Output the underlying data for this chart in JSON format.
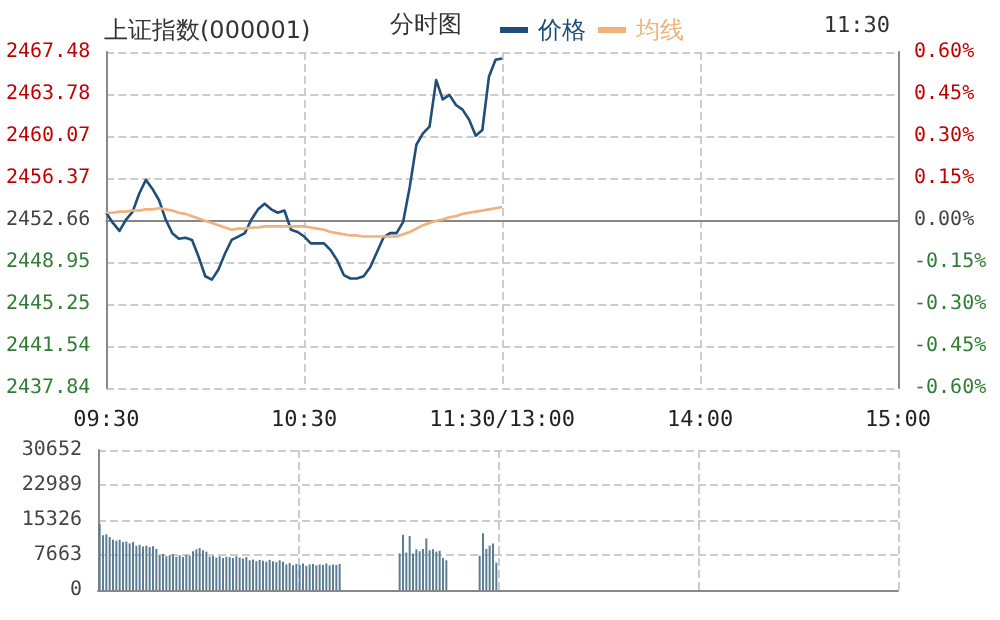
{
  "chart_data": [
    {
      "type": "line",
      "title": "上证指数(000001)",
      "subtitle": "分时图",
      "annotations": [
        "11:30"
      ],
      "legend": "top",
      "grid": true,
      "marker": "none",
      "line_style": "solid",
      "categories": [
        "09:30",
        null,
        null,
        null,
        null,
        null,
        null,
        null,
        null,
        null,
        null,
        null,
        null,
        null,
        null,
        null,
        null,
        null,
        null,
        null,
        null,
        null,
        null,
        null,
        null,
        null,
        null,
        null,
        null,
        null,
        "10:30",
        null,
        null,
        null,
        null,
        null,
        null,
        null,
        null,
        null,
        null,
        null,
        null,
        null,
        null,
        null,
        null,
        null,
        null,
        null,
        null,
        null,
        null,
        null,
        null,
        null,
        null,
        null,
        null,
        null,
        "11:30/13:00",
        null,
        null,
        null,
        null,
        null,
        null,
        null,
        null,
        null,
        null,
        null,
        null,
        null,
        null,
        null,
        null,
        null,
        null,
        null,
        null,
        null,
        null,
        null,
        null,
        null,
        null,
        null,
        null,
        null,
        "14:00",
        null,
        null,
        null,
        null,
        null,
        null,
        null,
        null,
        null,
        null,
        null,
        null,
        null,
        null,
        null,
        null,
        null,
        null,
        null,
        null,
        null,
        null,
        null,
        null,
        null,
        null,
        null,
        null,
        null,
        "15:00"
      ],
      "ylim": [
        2437.84,
        2467.48
      ],
      "yticks": [
        2437.84,
        2441.54,
        2445.25,
        2448.95,
        2452.66,
        2456.37,
        2460.07,
        2463.78,
        2467.48
      ],
      "y2lim": [
        -0.6,
        0.6
      ],
      "y2ticks": [
        {
          "value": -0.6,
          "label": "-0.60%"
        },
        {
          "value": -0.45,
          "label": "-0.45%"
        },
        {
          "value": -0.3,
          "label": "-0.30%"
        },
        {
          "value": -0.15,
          "label": "-0.15%"
        },
        {
          "value": 0,
          "label": "0.00%"
        },
        {
          "value": 0.15,
          "label": "0.15%"
        },
        {
          "value": 0.3,
          "label": "0.30%"
        },
        {
          "value": 0.45,
          "label": "0.45%"
        },
        {
          "value": 0.6,
          "label": "0.60%"
        }
      ],
      "series": [
        {
          "name": "价格",
          "color": "#1f4e79",
          "values": [
            2453.3,
            2452.4,
            2451.7,
            2452.7,
            2453.4,
            2455.0,
            2456.2,
            2455.4,
            2454.4,
            2452.7,
            2451.5,
            2451.0,
            2451.1,
            2450.9,
            2449.4,
            2447.7,
            2447.4,
            2448.3,
            2449.7,
            2450.9,
            2451.2,
            2451.5,
            2452.7,
            2453.6,
            2454.1,
            2453.6,
            2453.3,
            2453.5,
            2451.8,
            2451.6,
            2451.2,
            2450.6,
            2450.6,
            2450.6,
            2450.0,
            2449.1,
            2447.8,
            2447.5,
            2447.5,
            2447.7,
            2448.5,
            2449.8,
            2451.1,
            2451.5,
            2451.5,
            2452.5,
            2455.6,
            2459.3,
            2460.3,
            2460.9,
            2465.0,
            2463.3,
            2463.7,
            2462.8,
            2462.4,
            2461.5,
            2460.1,
            2460.6,
            2465.3,
            2466.8,
            2466.9,
            null,
            null,
            null,
            null,
            null,
            null,
            null,
            null,
            null,
            null,
            null,
            null,
            null,
            null,
            null,
            null,
            null,
            null,
            null,
            null,
            null,
            null,
            null,
            null,
            null,
            null,
            null,
            null,
            null,
            null,
            null,
            null,
            null,
            null,
            null,
            null,
            null,
            null,
            null,
            null,
            null,
            null,
            null,
            null,
            null,
            null,
            null,
            null,
            null,
            null,
            null,
            null,
            null,
            null,
            null,
            null,
            null,
            null,
            null,
            null
          ]
        },
        {
          "name": "均线",
          "color": "#f0b27a",
          "values": [
            2453.3,
            2453.3,
            2453.4,
            2453.4,
            2453.5,
            2453.5,
            2453.6,
            2453.6,
            2453.7,
            2453.6,
            2453.5,
            2453.3,
            2453.2,
            2453.0,
            2452.8,
            2452.6,
            2452.4,
            2452.2,
            2452.0,
            2451.8,
            2451.9,
            2451.9,
            2452.0,
            2452.0,
            2452.1,
            2452.1,
            2452.1,
            2452.1,
            2452.1,
            2452.1,
            2452.1,
            2452.0,
            2451.9,
            2451.8,
            2451.6,
            2451.5,
            2451.4,
            2451.3,
            2451.3,
            2451.2,
            2451.2,
            2451.2,
            2451.2,
            2451.2,
            2451.2,
            2451.4,
            2451.6,
            2451.9,
            2452.2,
            2452.4,
            2452.6,
            2452.7,
            2452.9,
            2453.0,
            2453.2,
            2453.3,
            2453.4,
            2453.5,
            2453.6,
            2453.7,
            2453.8,
            null,
            null,
            null,
            null,
            null,
            null,
            null,
            null,
            null,
            null,
            null,
            null,
            null,
            null,
            null,
            null,
            null,
            null,
            null,
            null,
            null,
            null,
            null,
            null,
            null,
            null,
            null,
            null,
            null,
            null,
            null,
            null,
            null,
            null,
            null,
            null,
            null,
            null,
            null,
            null,
            null,
            null,
            null,
            null,
            null,
            null,
            null,
            null,
            null,
            null,
            null,
            null,
            null,
            null,
            null,
            null,
            null,
            null,
            null,
            null
          ]
        }
      ]
    },
    {
      "type": "bar",
      "grid": true,
      "tick_labels": "y",
      "ylim": [
        0,
        30652
      ],
      "yticks": [
        0,
        7663,
        15326,
        22989,
        30652
      ],
      "categories": [
        null,
        null,
        null,
        null,
        null,
        null,
        null,
        null,
        null,
        null,
        null,
        null,
        null,
        null,
        null,
        null,
        null,
        null,
        null,
        null,
        null,
        null,
        null,
        null,
        null,
        null,
        null,
        null,
        null,
        null,
        null,
        null,
        null,
        null,
        null,
        null,
        null,
        null,
        null,
        null,
        null,
        null,
        null,
        null,
        null,
        null,
        null,
        null,
        null,
        null,
        null,
        null,
        null,
        null,
        null,
        null,
        null,
        null,
        null,
        null,
        null,
        null,
        null,
        null,
        null,
        null,
        null,
        null,
        null,
        null,
        null,
        null,
        null,
        null,
        null,
        null,
        null,
        null,
        null,
        null,
        null,
        null,
        null,
        null,
        null,
        null,
        null,
        null,
        null,
        null,
        null,
        null,
        null,
        null,
        null,
        null,
        null,
        null,
        null,
        null,
        null,
        null,
        null,
        null,
        null,
        null,
        null,
        null,
        null,
        null,
        null,
        null,
        null,
        null,
        null,
        null,
        null,
        null,
        null,
        null,
        null,
        null,
        null,
        null,
        null,
        null,
        null,
        null,
        null,
        null,
        null,
        null,
        null,
        null,
        null,
        null,
        null,
        null,
        null,
        null,
        null,
        null,
        null,
        null,
        null,
        null,
        null,
        null,
        null,
        null,
        null,
        null,
        null,
        null,
        null,
        null,
        null,
        null,
        null,
        null,
        null,
        null,
        null,
        null,
        null,
        null,
        null,
        null,
        null,
        null,
        null,
        null,
        null,
        null,
        null,
        null,
        null,
        null,
        null,
        null,
        null,
        null,
        null,
        null,
        null,
        null,
        null,
        null,
        null,
        null,
        null,
        null,
        null,
        null,
        null,
        null,
        null,
        null,
        null,
        null,
        null,
        null,
        null,
        null,
        null,
        null,
        null,
        null,
        null,
        null,
        null,
        null,
        null,
        null,
        null,
        null,
        null,
        null,
        null,
        null,
        null,
        null,
        null,
        null,
        null,
        null,
        null,
        null,
        null,
        null,
        null,
        null,
        null,
        null,
        null,
        null,
        null,
        null,
        null,
        null
      ],
      "series": [
        {
          "color": "#5b7e96",
          "values": [
            14500,
            12000,
            12200,
            11600,
            11000,
            10800,
            11000,
            10500,
            10600,
            10200,
            10500,
            9700,
            9900,
            9500,
            9700,
            9400,
            9600,
            9000,
            7600,
            7900,
            7400,
            7600,
            7800,
            7300,
            7600,
            7200,
            7700,
            7500,
            8500,
            8900,
            9200,
            8700,
            8400,
            7300,
            7500,
            7100,
            7400,
            7000,
            7300,
            7200,
            7000,
            7400,
            7100,
            6900,
            7200,
            6500,
            6700,
            6300,
            6600,
            6400,
            6200,
            6600,
            6300,
            6100,
            6500,
            6200,
            5600,
            5900,
            5400,
            5700,
            5500,
            5800,
            5300,
            5600,
            5700,
            5400,
            5600,
            5500,
            5800,
            5400,
            5600,
            5500,
            5700,
            null,
            null,
            null,
            null,
            null,
            null,
            null,
            null,
            null,
            null,
            null,
            null,
            null,
            null,
            null,
            null,
            null,
            8000,
            12100,
            8200,
            11800,
            8000,
            8900,
            8500,
            9000,
            11300,
            8700,
            8900,
            8400,
            8600,
            7000,
            6500,
            null,
            null,
            null,
            null,
            null,
            null,
            null,
            null,
            null,
            7500,
            12400,
            9000,
            9700,
            10200,
            6000,
            null,
            null,
            null,
            null,
            null,
            null,
            null,
            null,
            null,
            null,
            null,
            null,
            null,
            null,
            null,
            null,
            null,
            null,
            null,
            null,
            null,
            null,
            null,
            null,
            null,
            null,
            null,
            null,
            null,
            null,
            null,
            null,
            null,
            null,
            null,
            null,
            null,
            null,
            null,
            null,
            null,
            null,
            null,
            null,
            null,
            null,
            null,
            null,
            null,
            null,
            null,
            null,
            null,
            null,
            null,
            null,
            null,
            null,
            null,
            null,
            null,
            null,
            null,
            null,
            null,
            null,
            null,
            null,
            null,
            null,
            null,
            null,
            null,
            null,
            null,
            null,
            null,
            null,
            null,
            null,
            null,
            null,
            null,
            null,
            null,
            null,
            null,
            null,
            null,
            null,
            null,
            null,
            null,
            null,
            null,
            null,
            null,
            null,
            null,
            null,
            null,
            null,
            null,
            null,
            null,
            null,
            null,
            null,
            null,
            null,
            null,
            null,
            null,
            null,
            null,
            null,
            null,
            null,
            null,
            null
          ]
        }
      ]
    }
  ]
}
